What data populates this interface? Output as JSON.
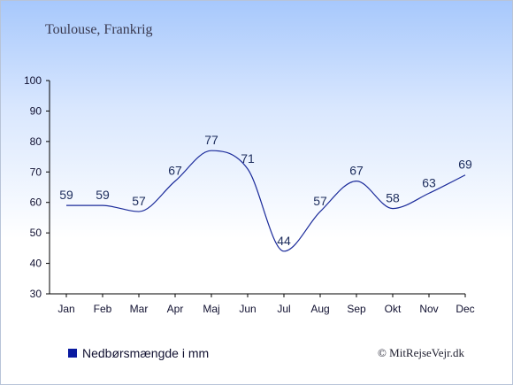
{
  "chart_data": {
    "type": "line",
    "title": "Toulouse, Frankrig",
    "categories": [
      "Jan",
      "Feb",
      "Mar",
      "Apr",
      "Maj",
      "Jun",
      "Jul",
      "Aug",
      "Sep",
      "Okt",
      "Nov",
      "Dec"
    ],
    "series": [
      {
        "name": "Nedbørsmængde i mm",
        "values": [
          59,
          59,
          57,
          67,
          77,
          71,
          44,
          57,
          67,
          58,
          63,
          69
        ],
        "color": "#1a2a9a"
      }
    ],
    "yticks": [
      30,
      40,
      50,
      60,
      70,
      80,
      90,
      100
    ],
    "ylim": [
      30,
      100
    ],
    "xlabel": "",
    "ylabel": "",
    "grid": false,
    "legend": "bottom-left",
    "legend_marker_color": "#0a1aa0",
    "axis_color": "#000000"
  },
  "copyright": "© MitRejseVejr.dk"
}
